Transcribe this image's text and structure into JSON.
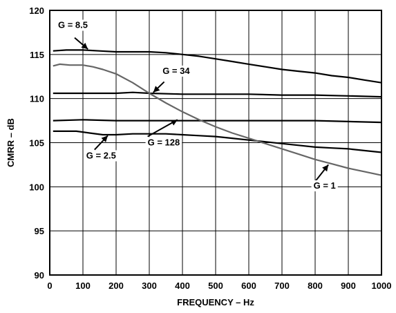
{
  "chart_data": {
    "type": "line",
    "xlabel": "FREQUENCY – Hz",
    "ylabel": "CMRR – dB",
    "xlim": [
      0,
      1000
    ],
    "ylim": [
      90,
      120
    ],
    "x_ticks": [
      0,
      100,
      200,
      300,
      400,
      500,
      600,
      700,
      800,
      900,
      1000
    ],
    "y_ticks": [
      90,
      95,
      100,
      105,
      110,
      115,
      120
    ],
    "grid": true,
    "series": [
      {
        "name": "G = 8.5",
        "color": "#000000",
        "points": [
          [
            10,
            115.4
          ],
          [
            50,
            115.5
          ],
          [
            100,
            115.5
          ],
          [
            150,
            115.4
          ],
          [
            200,
            115.3
          ],
          [
            250,
            115.3
          ],
          [
            300,
            115.3
          ],
          [
            350,
            115.2
          ],
          [
            400,
            115.0
          ],
          [
            450,
            114.8
          ],
          [
            500,
            114.5
          ],
          [
            550,
            114.2
          ],
          [
            600,
            113.9
          ],
          [
            650,
            113.6
          ],
          [
            700,
            113.3
          ],
          [
            750,
            113.1
          ],
          [
            800,
            112.9
          ],
          [
            850,
            112.6
          ],
          [
            900,
            112.4
          ],
          [
            950,
            112.1
          ],
          [
            1000,
            111.8
          ]
        ]
      },
      {
        "name": "G = 34",
        "color": "#000000",
        "points": [
          [
            10,
            110.6
          ],
          [
            100,
            110.6
          ],
          [
            200,
            110.6
          ],
          [
            250,
            110.7
          ],
          [
            300,
            110.6
          ],
          [
            400,
            110.5
          ],
          [
            500,
            110.5
          ],
          [
            600,
            110.5
          ],
          [
            700,
            110.4
          ],
          [
            800,
            110.4
          ],
          [
            900,
            110.3
          ],
          [
            1000,
            110.2
          ]
        ]
      },
      {
        "name": "G = 128",
        "color": "#000000",
        "points": [
          [
            10,
            107.5
          ],
          [
            100,
            107.6
          ],
          [
            200,
            107.5
          ],
          [
            300,
            107.5
          ],
          [
            400,
            107.5
          ],
          [
            500,
            107.5
          ],
          [
            600,
            107.5
          ],
          [
            700,
            107.5
          ],
          [
            800,
            107.5
          ],
          [
            900,
            107.4
          ],
          [
            1000,
            107.3
          ]
        ]
      },
      {
        "name": "G = 2.5",
        "color": "#000000",
        "points": [
          [
            10,
            106.3
          ],
          [
            80,
            106.3
          ],
          [
            120,
            106.1
          ],
          [
            160,
            105.9
          ],
          [
            200,
            105.9
          ],
          [
            250,
            106.0
          ],
          [
            300,
            106.0
          ],
          [
            350,
            106.0
          ],
          [
            400,
            105.9
          ],
          [
            450,
            105.8
          ],
          [
            500,
            105.7
          ],
          [
            550,
            105.5
          ],
          [
            600,
            105.3
          ],
          [
            650,
            105.1
          ],
          [
            700,
            104.9
          ],
          [
            750,
            104.7
          ],
          [
            800,
            104.5
          ],
          [
            850,
            104.4
          ],
          [
            900,
            104.3
          ],
          [
            950,
            104.1
          ],
          [
            1000,
            103.9
          ]
        ]
      },
      {
        "name": "G = 1",
        "color": "#666666",
        "points": [
          [
            10,
            113.7
          ],
          [
            30,
            113.9
          ],
          [
            60,
            113.8
          ],
          [
            100,
            113.8
          ],
          [
            130,
            113.6
          ],
          [
            160,
            113.3
          ],
          [
            200,
            112.8
          ],
          [
            250,
            111.8
          ],
          [
            300,
            110.6
          ],
          [
            350,
            109.5
          ],
          [
            400,
            108.5
          ],
          [
            450,
            107.6
          ],
          [
            500,
            106.8
          ],
          [
            550,
            106.1
          ],
          [
            600,
            105.5
          ],
          [
            650,
            104.9
          ],
          [
            700,
            104.3
          ],
          [
            750,
            103.7
          ],
          [
            800,
            103.1
          ],
          [
            850,
            102.6
          ],
          [
            900,
            102.1
          ],
          [
            950,
            101.7
          ],
          [
            1000,
            101.3
          ]
        ]
      }
    ],
    "annotations": [
      {
        "text": "G = 8.5",
        "label": [
          25,
          118
        ],
        "arrow_from": [
          75,
          116.9
        ],
        "arrow_to": [
          115,
          115.6
        ]
      },
      {
        "text": "G = 34",
        "label": [
          340,
          112.8
        ],
        "arrow_from": [
          345,
          111.9
        ],
        "arrow_to": [
          312,
          110.7
        ]
      },
      {
        "text": "G = 128",
        "label": [
          295,
          104.7
        ],
        "arrow_from": [
          295,
          105.7
        ],
        "arrow_to": [
          385,
          107.6
        ]
      },
      {
        "text": "G = 2.5",
        "label": [
          110,
          103.2
        ],
        "arrow_from": [
          135,
          104.2
        ],
        "arrow_to": [
          175,
          105.8
        ]
      },
      {
        "text": "G = 1",
        "label": [
          795,
          99.8
        ],
        "arrow_from": [
          800,
          100.6
        ],
        "arrow_to": [
          840,
          102.5
        ]
      }
    ]
  }
}
